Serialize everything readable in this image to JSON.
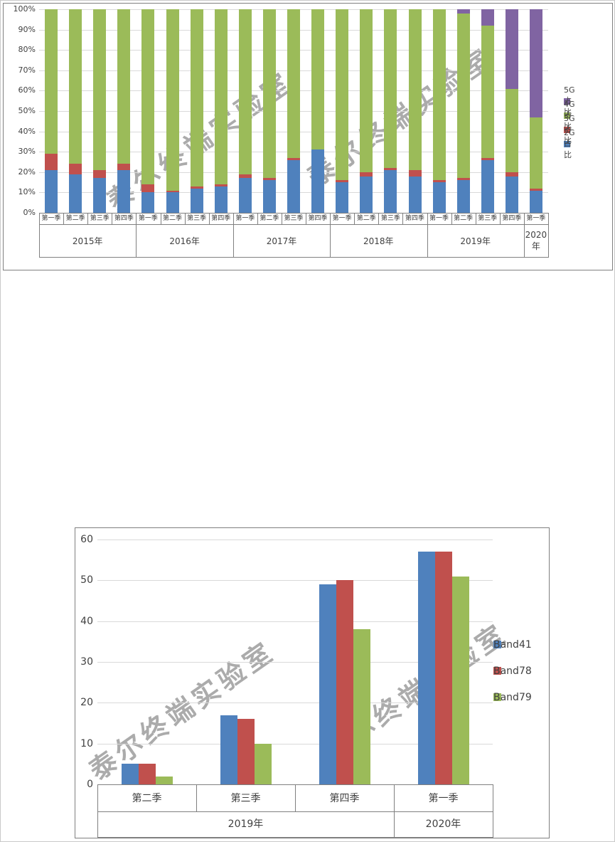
{
  "watermark": "泰尔终端实验室",
  "chart_data": [
    {
      "type": "stacked_bar_100",
      "title": "",
      "xlabel": "",
      "ylabel": "",
      "grid": true,
      "legend_position": "right",
      "ylim": [
        0,
        100
      ],
      "y_ticks": [
        "100%",
        "90%",
        "80%",
        "70%",
        "60%",
        "50%",
        "40%",
        "30%",
        "20%",
        "10%",
        "0%"
      ],
      "legend": [
        {
          "key": "5G",
          "label": "5G占比",
          "color": "#8064A2"
        },
        {
          "key": "4G",
          "label": "4G占比",
          "color": "#9BBB59"
        },
        {
          "key": "3G",
          "label": "3G占比",
          "color": "#C0504D"
        },
        {
          "key": "2G",
          "label": "2G占比",
          "color": "#4F81BD"
        }
      ],
      "stack_order": [
        "2G",
        "3G",
        "4G",
        "5G"
      ],
      "colors": {
        "2G": "#4F81BD",
        "3G": "#C0504D",
        "4G": "#9BBB59",
        "5G": "#8064A2"
      },
      "groups": [
        {
          "year": "2015年",
          "quarters": [
            "第一季",
            "第二季",
            "第三季",
            "第四季"
          ],
          "values": {
            "2G": [
              21,
              19,
              17,
              21
            ],
            "3G": [
              8,
              5,
              4,
              3
            ],
            "4G": [
              71,
              76,
              79,
              76
            ],
            "5G": [
              0,
              0,
              0,
              0
            ]
          }
        },
        {
          "year": "2016年",
          "quarters": [
            "第一季",
            "第二季",
            "第三季",
            "第四季"
          ],
          "values": {
            "2G": [
              10,
              10,
              12,
              13
            ],
            "3G": [
              4,
              1,
              1,
              1
            ],
            "4G": [
              86,
              89,
              87,
              86
            ],
            "5G": [
              0,
              0,
              0,
              0
            ]
          }
        },
        {
          "year": "2017年",
          "quarters": [
            "第一季",
            "第二季",
            "第三季",
            "第四季"
          ],
          "values": {
            "2G": [
              17,
              16,
              26,
              31
            ],
            "3G": [
              2,
              1,
              1,
              0
            ],
            "4G": [
              81,
              83,
              73,
              69
            ],
            "5G": [
              0,
              0,
              0,
              0
            ]
          }
        },
        {
          "year": "2018年",
          "quarters": [
            "第一季",
            "第二季",
            "第三季",
            "第四季"
          ],
          "values": {
            "2G": [
              15,
              18,
              21,
              18
            ],
            "3G": [
              1,
              2,
              1,
              3
            ],
            "4G": [
              84,
              80,
              78,
              79
            ],
            "5G": [
              0,
              0,
              0,
              0
            ]
          }
        },
        {
          "year": "2019年",
          "quarters": [
            "第一季",
            "第二季",
            "第三季",
            "第四季"
          ],
          "values": {
            "2G": [
              15,
              16,
              26,
              18
            ],
            "3G": [
              1,
              1,
              1,
              2
            ],
            "4G": [
              84,
              81,
              65,
              41
            ],
            "5G": [
              0,
              2,
              8,
              39
            ]
          }
        },
        {
          "year": "2020年",
          "quarters": [
            "第一季"
          ],
          "values": {
            "2G": [
              11
            ],
            "3G": [
              1
            ],
            "4G": [
              35
            ],
            "5G": [
              53
            ]
          }
        }
      ]
    },
    {
      "type": "bar",
      "title": "",
      "xlabel": "",
      "ylabel": "",
      "grid": true,
      "legend_position": "right",
      "ylim": [
        0,
        60
      ],
      "y_ticks": [
        "60",
        "50",
        "40",
        "30",
        "20",
        "10",
        "0"
      ],
      "categories": [
        "第二季",
        "第三季",
        "第四季",
        "第一季"
      ],
      "year_groups": [
        {
          "label": "2019年",
          "span": 3
        },
        {
          "label": "2020年",
          "span": 1
        }
      ],
      "series": [
        {
          "name": "Band41",
          "color": "#4F81BD",
          "values": [
            5,
            17,
            49,
            57
          ]
        },
        {
          "name": "Band78",
          "color": "#C0504D",
          "values": [
            5,
            16,
            50,
            57
          ]
        },
        {
          "name": "Band79",
          "color": "#9BBB59",
          "values": [
            2,
            10,
            38,
            51
          ]
        }
      ]
    }
  ]
}
